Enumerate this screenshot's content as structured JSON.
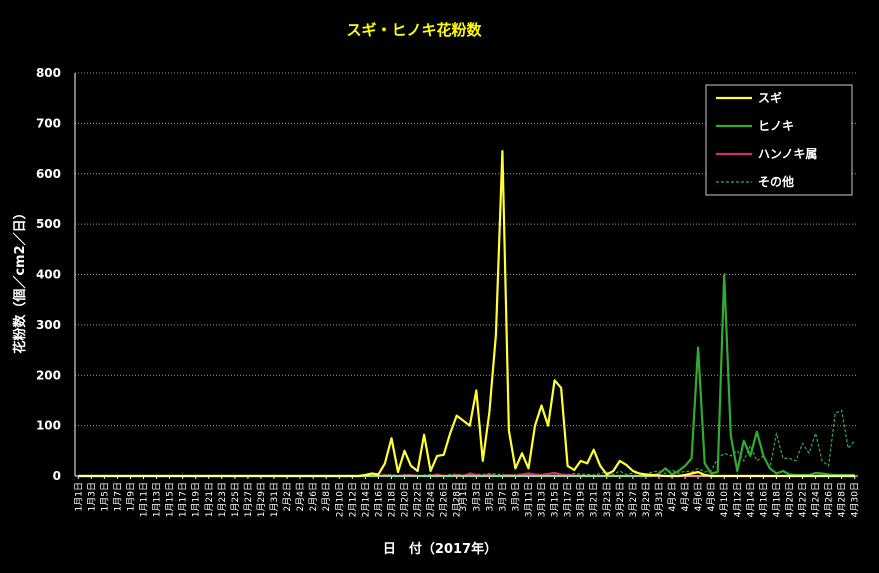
{
  "chart_data": {
    "type": "line",
    "title": "スギ・ヒノキ花粉数",
    "xlabel": "日　付（2017年）",
    "ylabel": "花粉数（個／cm2／日）",
    "ylim": [
      0,
      800
    ],
    "yticks": [
      0,
      100,
      200,
      300,
      400,
      500,
      600,
      700,
      800
    ],
    "grid": true,
    "legend_position": "top-right",
    "x_tick_labels": [
      "1月1日",
      "1月3日",
      "1月5日",
      "1月7日",
      "1月9日",
      "1月11日",
      "1月13日",
      "1月15日",
      "1月17日",
      "1月19日",
      "1月21日",
      "1月23日",
      "1月25日",
      "1月27日",
      "1月29日",
      "1月31日",
      "2月2日",
      "2月4日",
      "2月6日",
      "2月8日",
      "2月10日",
      "2月12日",
      "2月14日",
      "2月16日",
      "2月18日",
      "2月20日",
      "2月22日",
      "2月24日",
      "2月26日",
      "2月28日",
      "3月1日",
      "3月3日",
      "3月5日",
      "3月7日",
      "3月9日",
      "3月11日",
      "3月13日",
      "3月15日",
      "3月17日",
      "3月19日",
      "3月21日",
      "3月23日",
      "3月25日",
      "3月27日",
      "3月29日",
      "3月31日",
      "4月2日",
      "4月4日",
      "4月6日",
      "4月8日",
      "4月10日",
      "4月12日",
      "4月14日",
      "4月16日",
      "4月18日",
      "4月20日",
      "4月22日",
      "4月24日",
      "4月26日",
      "4月28日",
      "4月30日"
    ],
    "x": [
      "1月1日",
      "1月2日",
      "1月3日",
      "1月4日",
      "1月5日",
      "1月6日",
      "1月7日",
      "1月8日",
      "1月9日",
      "1月10日",
      "1月11日",
      "1月12日",
      "1月13日",
      "1月14日",
      "1月15日",
      "1月16日",
      "1月17日",
      "1月18日",
      "1月19日",
      "1月20日",
      "1月21日",
      "1月22日",
      "1月23日",
      "1月24日",
      "1月25日",
      "1月26日",
      "1月27日",
      "1月28日",
      "1月29日",
      "1月30日",
      "1月31日",
      "2月1日",
      "2月2日",
      "2月3日",
      "2月4日",
      "2月5日",
      "2月6日",
      "2月7日",
      "2月8日",
      "2月9日",
      "2月10日",
      "2月11日",
      "2月12日",
      "2月13日",
      "2月14日",
      "2月15日",
      "2月16日",
      "2月17日",
      "2月18日",
      "2月19日",
      "2月20日",
      "2月21日",
      "2月22日",
      "2月23日",
      "2月24日",
      "2月25日",
      "2月26日",
      "2月27日",
      "2月28日",
      "3月1日",
      "3月2日",
      "3月3日",
      "3月4日",
      "3月5日",
      "3月6日",
      "3月7日",
      "3月8日",
      "3月9日",
      "3月10日",
      "3月11日",
      "3月12日",
      "3月13日",
      "3月14日",
      "3月15日",
      "3月16日",
      "3月17日",
      "3月18日",
      "3月19日",
      "3月20日",
      "3月21日",
      "3月22日",
      "3月23日",
      "3月24日",
      "3月25日",
      "3月26日",
      "3月27日",
      "3月28日",
      "3月29日",
      "3月30日",
      "3月31日",
      "4月1日",
      "4月2日",
      "4月3日",
      "4月4日",
      "4月5日",
      "4月6日",
      "4月7日",
      "4月8日",
      "4月9日",
      "4月10日",
      "4月11日",
      "4月12日",
      "4月13日",
      "4月14日",
      "4月15日",
      "4月16日",
      "4月17日",
      "4月18日",
      "4月19日",
      "4月20日",
      "4月21日",
      "4月22日",
      "4月23日",
      "4月24日",
      "4月25日",
      "4月26日",
      "4月27日",
      "4月28日",
      "4月29日",
      "4月30日"
    ],
    "series": [
      {
        "name": "スギ",
        "color": "#ffff33",
        "style": "solid",
        "values": [
          0,
          0,
          0,
          0,
          0,
          0,
          0,
          0,
          0,
          0,
          0,
          0,
          0,
          0,
          0,
          0,
          0,
          0,
          0,
          0,
          0,
          0,
          0,
          0,
          0,
          0,
          0,
          0,
          0,
          0,
          0,
          0,
          0,
          0,
          0,
          0,
          0,
          0,
          0,
          0,
          0,
          0,
          0,
          0,
          2,
          5,
          3,
          25,
          75,
          8,
          50,
          20,
          10,
          82,
          10,
          40,
          42,
          85,
          120,
          110,
          100,
          170,
          30,
          125,
          280,
          645,
          90,
          15,
          45,
          15,
          100,
          140,
          100,
          190,
          175,
          20,
          12,
          30,
          25,
          52,
          20,
          3,
          10,
          30,
          22,
          10,
          5,
          3,
          2,
          1,
          0,
          0,
          0,
          2,
          5,
          8,
          2,
          0,
          0,
          0,
          0,
          0,
          0,
          0,
          0,
          0,
          0,
          0,
          0,
          0,
          0,
          0,
          0,
          0,
          0,
          0,
          0,
          0,
          0,
          0
        ]
      },
      {
        "name": "ヒノキ",
        "color": "#33aa33",
        "style": "solid",
        "values": [
          0,
          0,
          0,
          0,
          0,
          0,
          0,
          0,
          0,
          0,
          0,
          0,
          0,
          0,
          0,
          0,
          0,
          0,
          0,
          0,
          0,
          0,
          0,
          0,
          0,
          0,
          0,
          0,
          0,
          0,
          0,
          0,
          0,
          0,
          0,
          0,
          0,
          0,
          0,
          0,
          0,
          0,
          0,
          0,
          0,
          0,
          0,
          0,
          0,
          0,
          0,
          0,
          0,
          0,
          0,
          0,
          0,
          0,
          0,
          0,
          0,
          0,
          0,
          0,
          0,
          0,
          0,
          0,
          0,
          0,
          0,
          0,
          0,
          0,
          0,
          0,
          0,
          0,
          0,
          0,
          0,
          0,
          0,
          0,
          0,
          0,
          0,
          0,
          0,
          5,
          15,
          3,
          10,
          20,
          35,
          255,
          25,
          5,
          8,
          400,
          80,
          10,
          70,
          40,
          88,
          40,
          15,
          5,
          10,
          3,
          2,
          2,
          2,
          6,
          5,
          3,
          2,
          2,
          2,
          2
        ]
      },
      {
        "name": "ハンノキ属",
        "color": "#cc3366",
        "style": "solid",
        "values": [
          0,
          0,
          0,
          0,
          0,
          0,
          0,
          0,
          0,
          0,
          0,
          0,
          0,
          0,
          0,
          0,
          0,
          0,
          0,
          0,
          0,
          0,
          0,
          0,
          0,
          0,
          0,
          0,
          0,
          0,
          0,
          0,
          0,
          0,
          0,
          0,
          0,
          0,
          0,
          0,
          0,
          0,
          0,
          0,
          0,
          0,
          0,
          2,
          0,
          0,
          1,
          2,
          0,
          0,
          0,
          3,
          0,
          0,
          2,
          0,
          5,
          2,
          0,
          3,
          0,
          0,
          2,
          0,
          3,
          5,
          3,
          2,
          4,
          6,
          3,
          2,
          1,
          0,
          0,
          0,
          0,
          0,
          0,
          0,
          0,
          0,
          0,
          0,
          0,
          0,
          0,
          0,
          0,
          0,
          0,
          0,
          0,
          0,
          0,
          0,
          0,
          0,
          0,
          0,
          0,
          0,
          0,
          0,
          0,
          0,
          0,
          0,
          0,
          0,
          0,
          0,
          0,
          0,
          0,
          0
        ]
      },
      {
        "name": "その他",
        "color": "#33aa55",
        "style": "dashed",
        "values": [
          0,
          0,
          0,
          0,
          0,
          0,
          0,
          0,
          0,
          0,
          0,
          0,
          0,
          0,
          0,
          0,
          0,
          0,
          0,
          0,
          0,
          0,
          0,
          0,
          0,
          0,
          0,
          0,
          0,
          0,
          0,
          0,
          0,
          0,
          0,
          0,
          0,
          0,
          0,
          0,
          0,
          0,
          0,
          0,
          0,
          0,
          0,
          2,
          3,
          1,
          3,
          2,
          1,
          2,
          3,
          2,
          1,
          3,
          4,
          2,
          3,
          4,
          3,
          5,
          4,
          3,
          2,
          3,
          4,
          3,
          2,
          3,
          5,
          4,
          2,
          3,
          5,
          4,
          3,
          2,
          5,
          8,
          3,
          10,
          3,
          6,
          5,
          4,
          8,
          10,
          5,
          12,
          5,
          10,
          8,
          15,
          8,
          10,
          35,
          45,
          40,
          50,
          30,
          60,
          30,
          40,
          15,
          85,
          35,
          35,
          30,
          65,
          45,
          85,
          30,
          20,
          125,
          130,
          55,
          70
        ]
      }
    ]
  }
}
